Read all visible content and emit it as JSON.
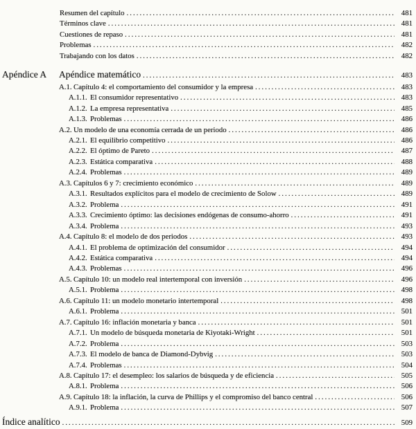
{
  "toc": {
    "front_matter": [
      {
        "label": "Resumen del capítulo",
        "page": "481"
      },
      {
        "label": "Términos clave",
        "page": "481"
      },
      {
        "label": "Cuestiones de repaso",
        "page": "481"
      },
      {
        "label": "Problemas",
        "page": "482"
      },
      {
        "label": "Trabajando con los datos",
        "page": "482"
      }
    ],
    "appendix": {
      "label": "Apéndice A",
      "title": "Apéndice matemático",
      "page": "483",
      "sections": [
        {
          "num": "A.1.",
          "label": "Capítulo 4: el comportamiento del consumidor y la empresa",
          "page": "483",
          "subsections": [
            {
              "num": "A.1.1.",
              "label": "El consumidor representativo",
              "page": "483"
            },
            {
              "num": "A.1.2.",
              "label": "La empresa representativa",
              "page": "485"
            },
            {
              "num": "A.1.3.",
              "label": "Problemas",
              "page": "486"
            }
          ]
        },
        {
          "num": "A.2.",
          "label": "Un modelo de una economía cerrada de un periodo",
          "page": "486",
          "subsections": [
            {
              "num": "A.2.1.",
              "label": "El equilibrio competitivo",
              "page": "486"
            },
            {
              "num": "A.2.2.",
              "label": "El óptimo de Pareto",
              "page": "487"
            },
            {
              "num": "A.2.3.",
              "label": "Estática comparativa",
              "page": "488"
            },
            {
              "num": "A.2.4.",
              "label": "Problemas",
              "page": "489"
            }
          ]
        },
        {
          "num": "A.3.",
          "label": "Capítulos 6 y 7: crecimiento económico",
          "page": "489",
          "subsections": [
            {
              "num": "A.3.1.",
              "label": "Resultados explícitos para el modelo de crecimiento de Solow",
              "page": "489"
            },
            {
              "num": "A.3.2.",
              "label": "Problema",
              "page": "491"
            },
            {
              "num": "A.3.3.",
              "label": "Crecimiento óptimo: las decisiones endógenas de consumo-ahorro",
              "page": "491"
            },
            {
              "num": "A.3.4.",
              "label": "Problema",
              "page": "493"
            }
          ]
        },
        {
          "num": "A.4.",
          "label": "Capítulo 8: el modelo de dos periodos",
          "page": "493",
          "subsections": [
            {
              "num": "A.4.1.",
              "label": "El problema de optimización del consumidor",
              "page": "494"
            },
            {
              "num": "A.4.2.",
              "label": "Estática comparativa",
              "page": "494"
            },
            {
              "num": "A.4.3.",
              "label": "Problemas",
              "page": "496"
            }
          ]
        },
        {
          "num": "A.5.",
          "label": "Capítulo 10: un modelo real intertemporal con inversión",
          "page": "496",
          "subsections": [
            {
              "num": "A.5.1.",
              "label": "Problema",
              "page": "498"
            }
          ]
        },
        {
          "num": "A.6.",
          "label": "Capítulo 11: un modelo monetario intertemporal",
          "page": "498",
          "subsections": [
            {
              "num": "A.6.1.",
              "label": "Problema",
              "page": "501"
            }
          ]
        },
        {
          "num": "A.7.",
          "label": "Capítulo 16: inflación monetaria y banca",
          "page": "501",
          "subsections": [
            {
              "num": "A.7.1.",
              "label": "Un modelo de búsqueda monetaria de Kiyotaki-Wright",
              "page": "501"
            },
            {
              "num": "A.7.2.",
              "label": "Problema",
              "page": "503"
            },
            {
              "num": "A.7.3.",
              "label": "El modelo de banca de Diamond-Dybvig",
              "page": "503"
            },
            {
              "num": "A.7.4.",
              "label": "Problemas",
              "page": "504"
            }
          ]
        },
        {
          "num": "A.8.",
          "label": "Capítulo 17: el desempleo: los salarios de búsqueda y de eficiencia",
          "page": "505",
          "subsections": [
            {
              "num": "A.8.1.",
              "label": "Problema",
              "page": "506"
            }
          ]
        },
        {
          "num": "A.9.",
          "label": "Capítulo 18: la inflación, la curva de Phillips y el compromiso del banco central",
          "page": "506",
          "subsections": [
            {
              "num": "A.9.1.",
              "label": "Problema",
              "page": "507"
            }
          ]
        }
      ]
    },
    "back_matter": {
      "label": "Índice analítico",
      "page": "509"
    }
  }
}
